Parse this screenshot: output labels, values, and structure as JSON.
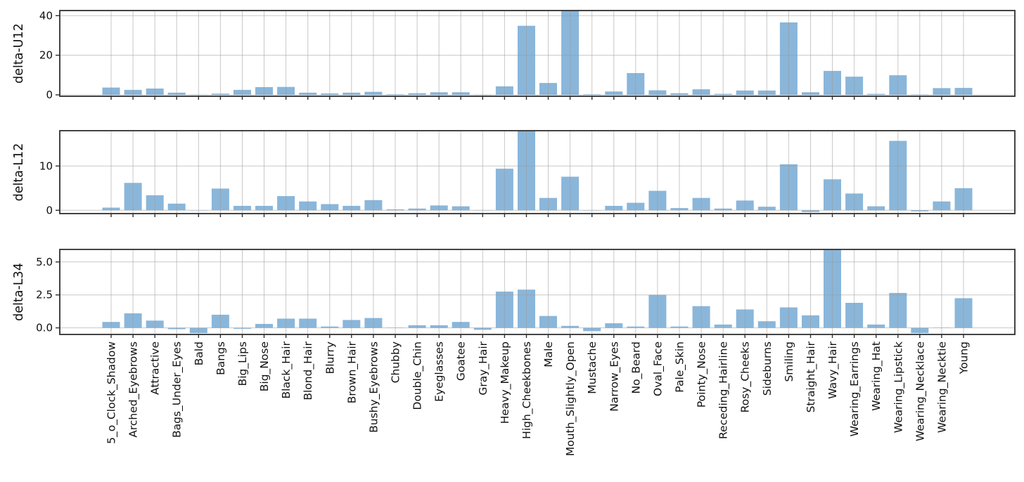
{
  "chart_data": {
    "type": "bar",
    "title": "",
    "xlabel": "",
    "grid": true,
    "legend": "none",
    "bar_color": "#8ab6da",
    "categories": [
      "5_o_Clock_Shadow",
      "Arched_Eyebrows",
      "Attractive",
      "Bags_Under_Eyes",
      "Bald",
      "Bangs",
      "Big_Lips",
      "Big_Nose",
      "Black_Hair",
      "Blond_Hair",
      "Blurry",
      "Brown_Hair",
      "Bushy_Eyebrows",
      "Chubby",
      "Double_Chin",
      "Eyeglasses",
      "Goatee",
      "Gray_Hair",
      "Heavy_Makeup",
      "High_Cheekbones",
      "Male",
      "Mouth_Slightly_Open",
      "Mustache",
      "Narrow_Eyes",
      "No_Beard",
      "Oval_Face",
      "Pale_Skin",
      "Pointy_Nose",
      "Receding_Hairline",
      "Rosy_Cheeks",
      "Sideburns",
      "Smiling",
      "Straight_Hair",
      "Wavy_Hair",
      "Wearing_Earrings",
      "Wearing_Hat",
      "Wearing_Lipstick",
      "Wearing_Necklace",
      "Wearing_Necktie",
      "Young"
    ],
    "panels": [
      {
        "ylabel": "delta-U12",
        "ytick_values": [
          0,
          20,
          40
        ],
        "ytick_labels": [
          "0",
          "20",
          "40"
        ],
        "ylim": [
          -0.72,
          42.6
        ],
        "clipped_note": "Mouth_Slightly_Open bar exceeds axis top",
        "values": [
          3.7,
          2.5,
          3.2,
          1.1,
          0.1,
          0.6,
          2.5,
          3.9,
          4.0,
          1.1,
          0.7,
          1.1,
          1.5,
          0.3,
          0.8,
          1.3,
          1.3,
          0.1,
          4.3,
          34.9,
          6.0,
          44.0,
          0.3,
          1.7,
          11.0,
          2.3,
          0.8,
          2.8,
          0.5,
          2.2,
          2.2,
          36.6,
          1.3,
          12.1,
          9.2,
          0.5,
          9.9,
          0.2,
          3.4,
          3.5
        ]
      },
      {
        "ylabel": "delta-L12",
        "ytick_values": [
          0,
          10
        ],
        "ytick_labels": [
          "0",
          "10"
        ],
        "ylim": [
          -0.75,
          18.0
        ],
        "clipped_note": "High_Cheekbones bar exceeds axis top",
        "values": [
          0.6,
          6.2,
          3.4,
          1.5,
          0.05,
          4.9,
          1.0,
          1.0,
          3.2,
          2.0,
          1.4,
          1.0,
          2.3,
          0.2,
          0.4,
          1.1,
          0.9,
          0.05,
          9.4,
          19.0,
          2.8,
          7.6,
          0.05,
          1.0,
          1.7,
          4.4,
          0.5,
          2.8,
          0.4,
          2.2,
          0.8,
          10.4,
          -0.4,
          7.0,
          3.8,
          0.9,
          15.7,
          -0.25,
          2.0,
          5.0
        ]
      },
      {
        "ylabel": "delta-L34",
        "ytick_values": [
          0.0,
          2.5,
          5.0
        ],
        "ytick_labels": [
          "0.0",
          "2.5",
          "5.0"
        ],
        "ylim": [
          -0.5,
          5.95
        ],
        "clipped_note": "Wavy_Hair bar exceeds axis top",
        "values": [
          0.45,
          1.1,
          0.55,
          -0.1,
          -0.4,
          1.0,
          -0.07,
          0.3,
          0.7,
          0.7,
          0.1,
          0.6,
          0.75,
          0.02,
          0.2,
          0.2,
          0.45,
          -0.15,
          2.75,
          2.9,
          0.9,
          0.15,
          -0.25,
          0.35,
          0.1,
          2.5,
          0.1,
          1.65,
          0.25,
          1.4,
          0.5,
          1.55,
          0.95,
          6.3,
          1.9,
          0.25,
          2.65,
          -0.4,
          0.02,
          2.25
        ]
      }
    ]
  },
  "colors": {
    "bar": "#8ab6da",
    "grid": "#9b9b9b",
    "spine": "#303030",
    "text": "#111111"
  }
}
